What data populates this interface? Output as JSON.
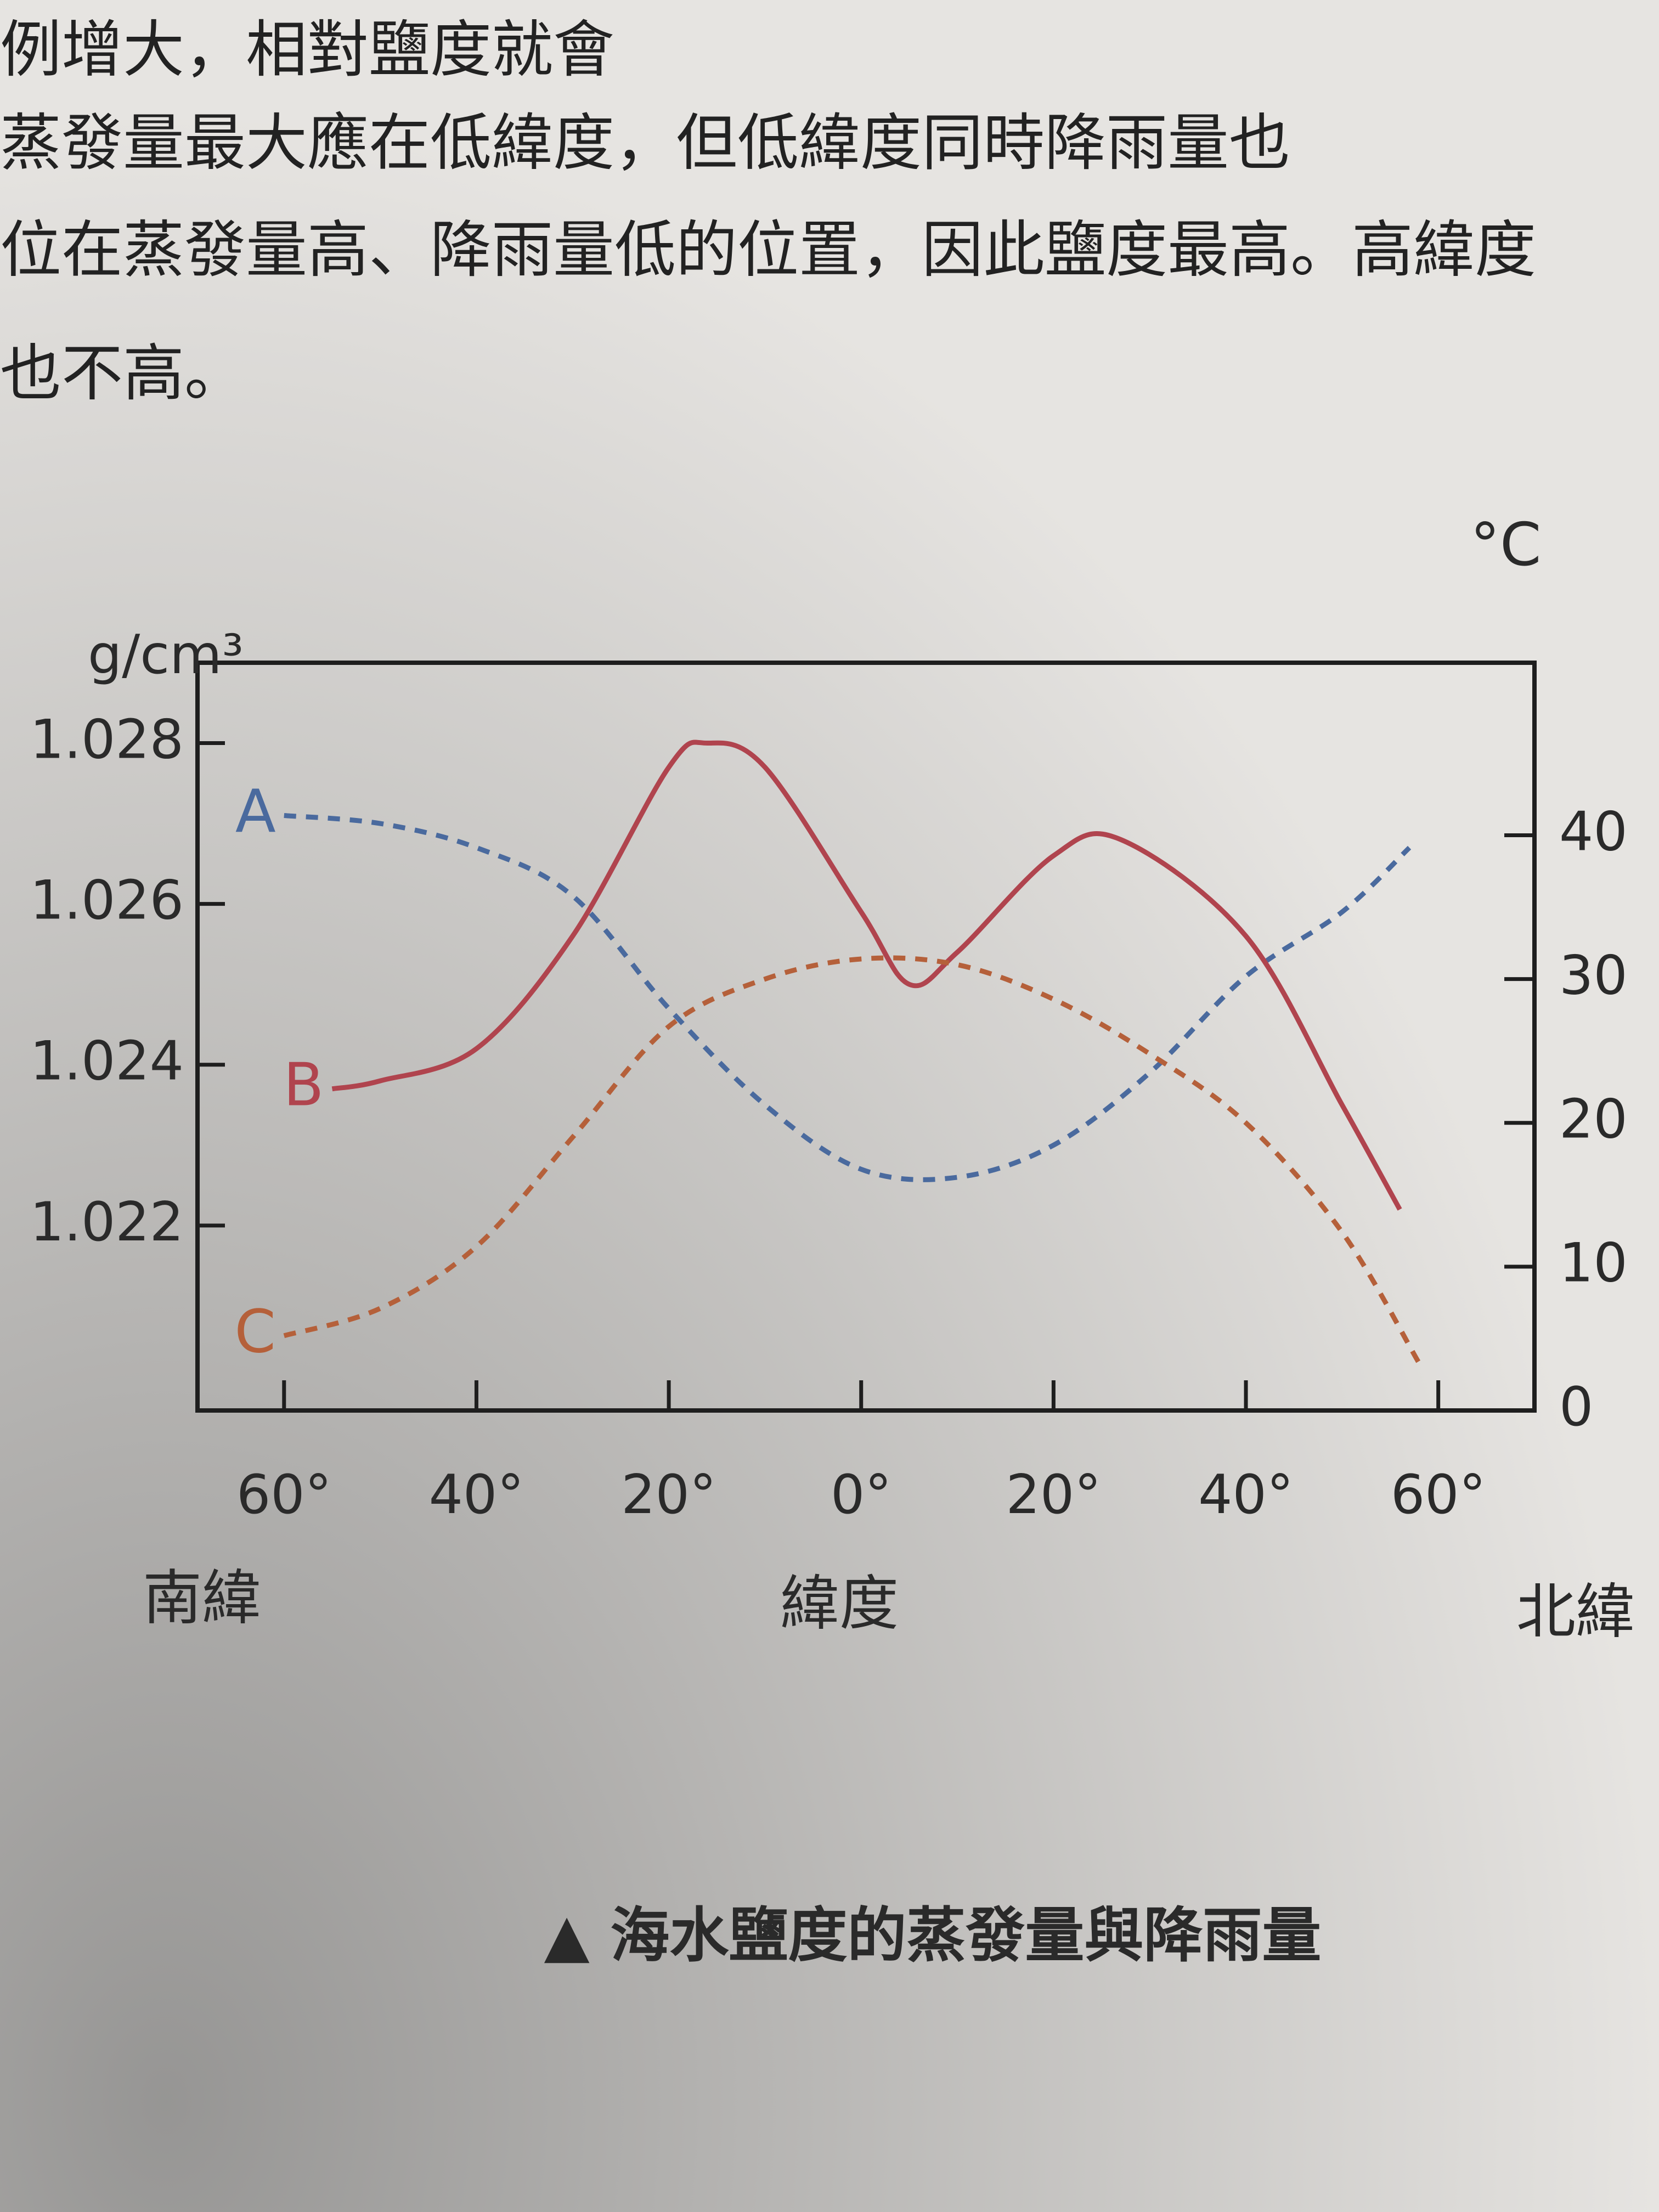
{
  "document": {
    "lines": [
      "例增大，相對鹽度就會",
      "蒸發量最大應在低緯度，但低緯度同時降雨量也",
      "位在蒸發量高、降雨量低的位置，因此鹽度最高。高緯度",
      "也不高。"
    ]
  },
  "chart_data": {
    "type": "line",
    "caption": "▲ 海水鹽度的蒸發量與降雨量",
    "y_label": "g/cm³",
    "y2_label": "°C",
    "x_label": "緯度",
    "x_left_label": "南緯",
    "x_right_label": "北緯",
    "xlim": [
      -69,
      70
    ],
    "xticks": [
      {
        "value": -60,
        "label": "60°"
      },
      {
        "value": -40,
        "label": "40°"
      },
      {
        "value": -20,
        "label": "20°"
      },
      {
        "value": 0,
        "label": "0°"
      },
      {
        "value": 20,
        "label": "20°"
      },
      {
        "value": 40,
        "label": "40°"
      },
      {
        "value": 60,
        "label": "60°"
      }
    ],
    "ylim": [
      1.0197,
      1.029
    ],
    "yticks": [
      1.022,
      1.024,
      1.026,
      1.028
    ],
    "y2lim": [
      0,
      52
    ],
    "y2ticks": [
      0,
      10,
      20,
      30,
      40
    ],
    "series": [
      {
        "name": "A",
        "color": "#4a6a9e",
        "style": "dashed",
        "axis": "y",
        "x": [
          -60,
          -50,
          -40,
          -30,
          -20,
          -10,
          0,
          10,
          20,
          30,
          40,
          50,
          57
        ],
        "values": [
          1.0271,
          1.027,
          1.0267,
          1.0261,
          1.0247,
          1.0235,
          1.0227,
          1.0226,
          1.023,
          1.0239,
          1.0251,
          1.0259,
          1.0267
        ]
      },
      {
        "name": "B",
        "color": "#b0444e",
        "style": "solid",
        "axis": "y",
        "x": [
          -55,
          -50,
          -40,
          -30,
          -20,
          -16,
          -10,
          0,
          5,
          10,
          20,
          27,
          40,
          50,
          56
        ],
        "values": [
          1.0237,
          1.0238,
          1.0242,
          1.0256,
          1.0277,
          1.028,
          1.0277,
          1.0259,
          1.025,
          1.0254,
          1.0266,
          1.0268,
          1.0256,
          1.0235,
          1.0222
        ]
      },
      {
        "name": "C",
        "color": "#b5603a",
        "style": "dashed",
        "axis": "y2",
        "x": [
          -60,
          -50,
          -40,
          -30,
          -20,
          -10,
          0,
          10,
          20,
          30,
          40,
          50,
          58
        ],
        "values": [
          5.2,
          7.1,
          11.4,
          19,
          26.7,
          30,
          31.4,
          31,
          28.6,
          24.8,
          20,
          12.4,
          3.3
        ]
      }
    ]
  }
}
